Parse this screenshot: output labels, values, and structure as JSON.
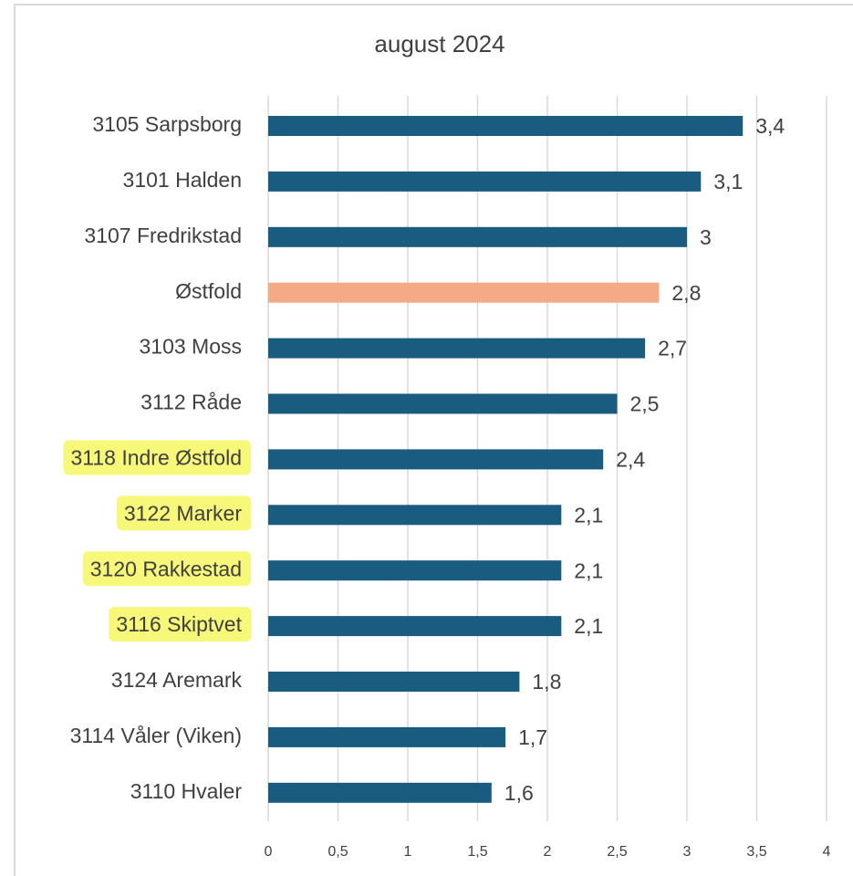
{
  "chart_data": {
    "type": "barh",
    "title": "august 2024",
    "categories": [
      "3105 Sarpsborg",
      "3101 Halden",
      "3107 Fredrikstad",
      "Østfold",
      "3103 Moss",
      "3112 Råde",
      "3118 Indre Østfold",
      "3122 Marker",
      "3120 Rakkestad",
      "3116 Skiptvet",
      "3124 Aremark",
      "3114 Våler (Viken)",
      "3110 Hvaler"
    ],
    "values": [
      3.4,
      3.1,
      3,
      2.8,
      2.7,
      2.5,
      2.4,
      2.1,
      2.1,
      2.1,
      1.8,
      1.7,
      1.6
    ],
    "value_labels": [
      "3,4",
      "3,1",
      "3",
      "2,8",
      "2,7",
      "2,5",
      "2,4",
      "2,1",
      "2,1",
      "2,1",
      "1,8",
      "1,7",
      "1,6"
    ],
    "colors": [
      "#1a5c80",
      "#1a5c80",
      "#1a5c80",
      "#f4aa85",
      "#1a5c80",
      "#1a5c80",
      "#1a5c80",
      "#1a5c80",
      "#1a5c80",
      "#1a5c80",
      "#1a5c80",
      "#1a5c80",
      "#1a5c80"
    ],
    "label_highlights": [
      false,
      false,
      false,
      false,
      false,
      false,
      true,
      true,
      true,
      true,
      false,
      false,
      false
    ],
    "highlight_color": "#f7f77a",
    "xlim": [
      0,
      4
    ],
    "xticks": [
      0,
      {
        "value": 0.5,
        "label": "0,5"
      },
      1,
      {
        "value": 1.5,
        "label": "1,5"
      },
      2,
      {
        "value": 2.5,
        "label": "2,5"
      },
      3,
      {
        "value": 3.5,
        "label": "3,5"
      },
      4
    ],
    "grid": true
  }
}
